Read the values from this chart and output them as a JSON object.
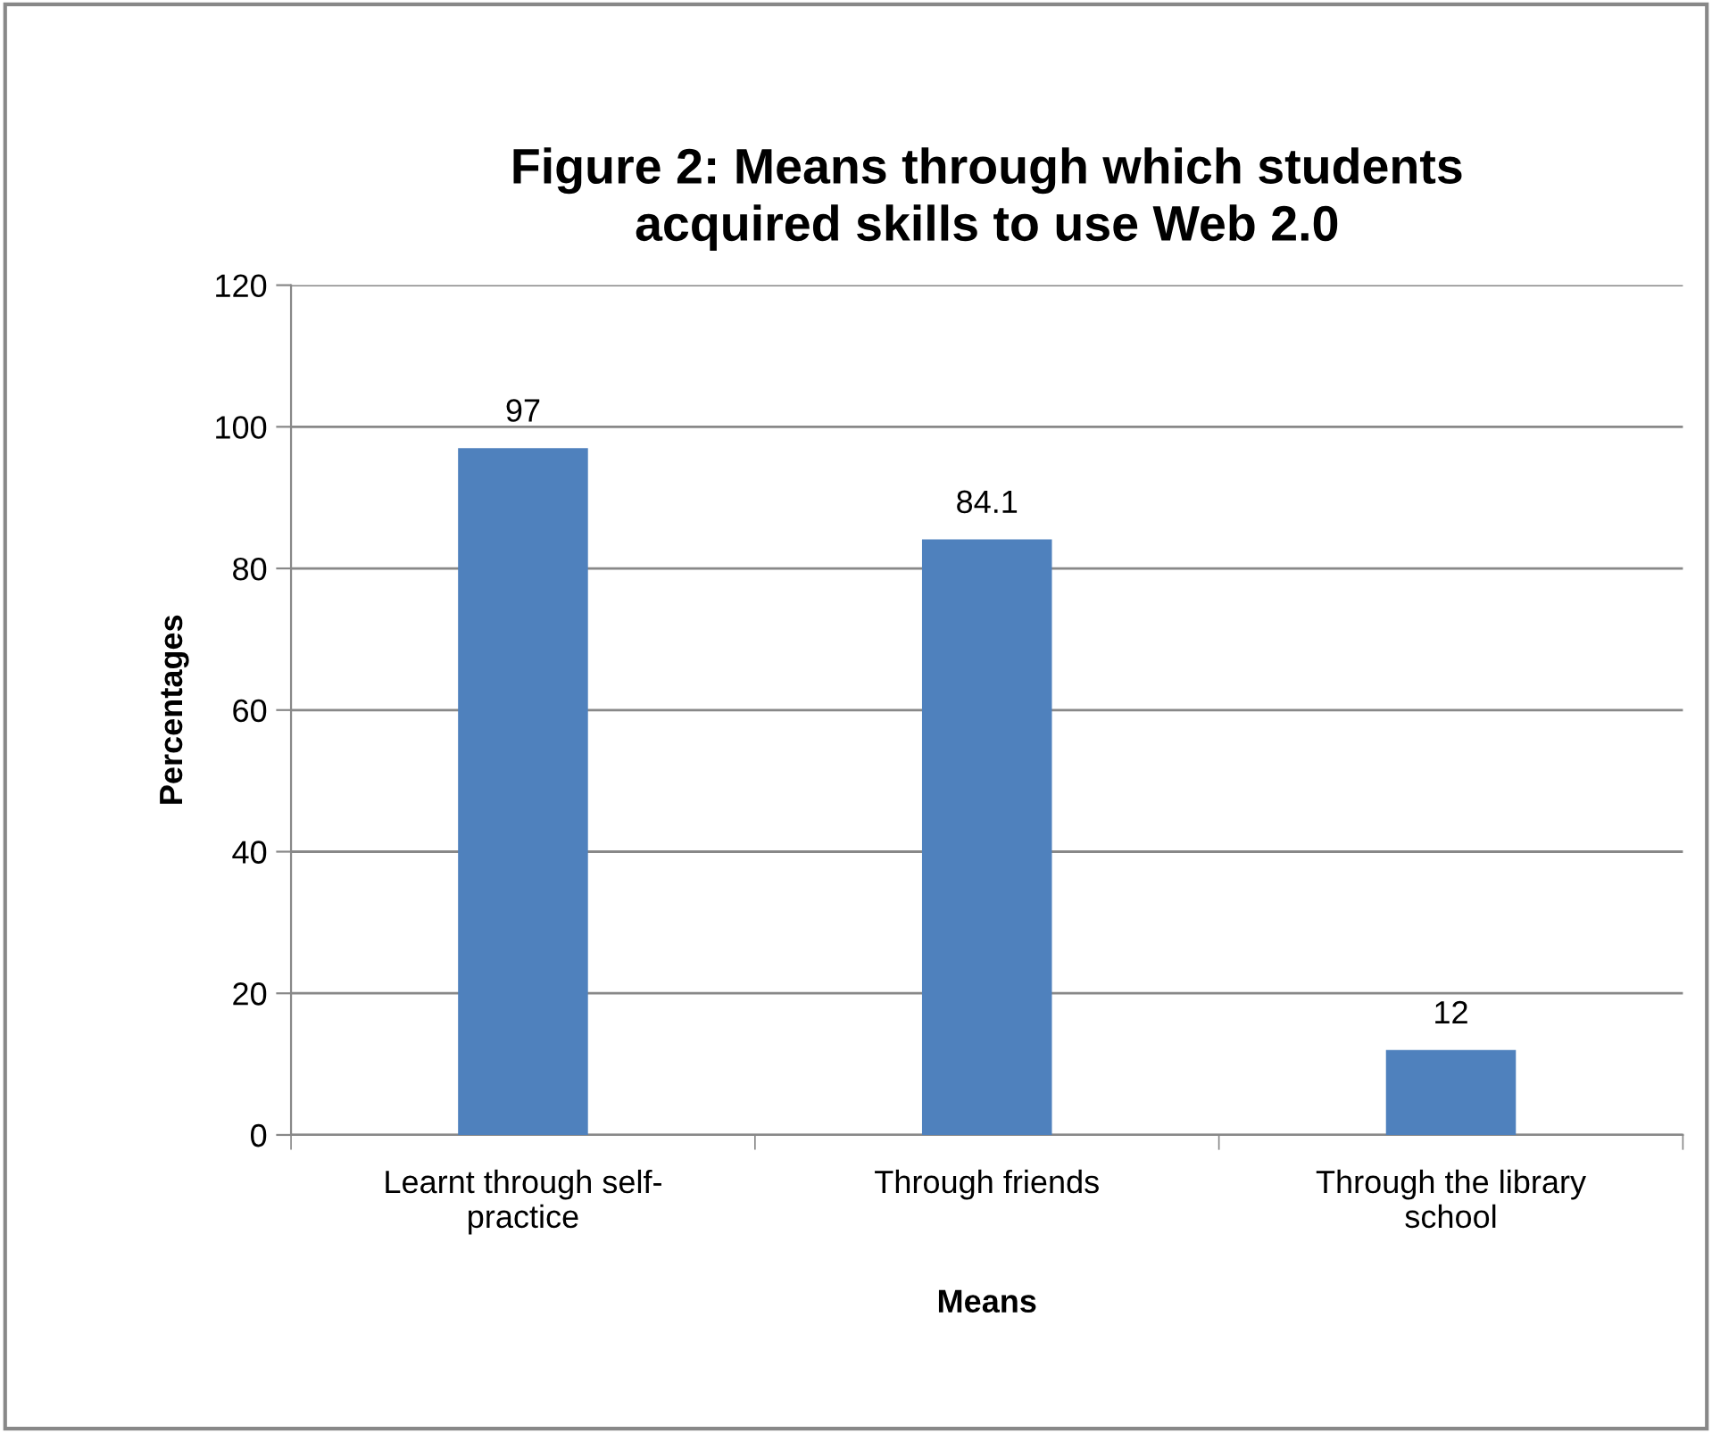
{
  "chart_data": {
    "type": "bar",
    "title": "Figure 2: Means through which students\nacquired skills to use Web 2.0",
    "xlabel": "Means",
    "ylabel": "Percentages",
    "categories": [
      "Learnt through self-\npractice",
      "Through friends",
      "Through the library\nschool"
    ],
    "values": [
      97,
      84.1,
      12
    ],
    "color": "#4f81bd",
    "ylim": [
      0,
      120
    ],
    "yticks": [
      0,
      20,
      40,
      60,
      80,
      100,
      120
    ],
    "grid": "y",
    "data_labels": true,
    "legend": false
  }
}
